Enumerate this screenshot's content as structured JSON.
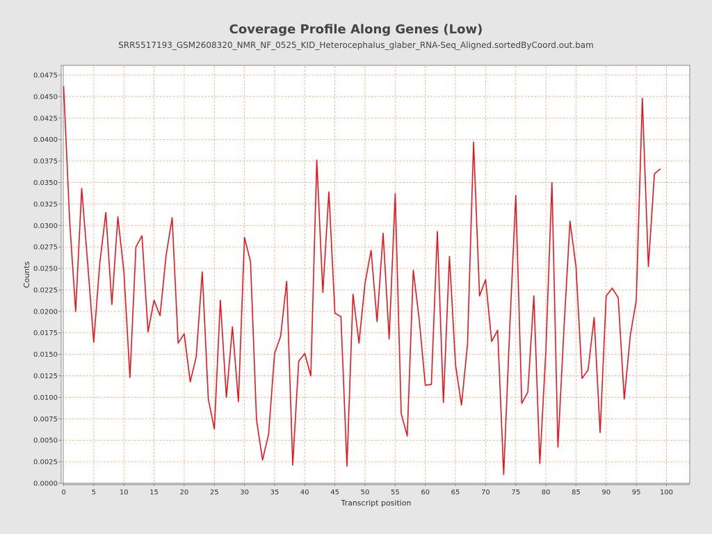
{
  "chart_data": {
    "type": "line",
    "title": "Coverage Profile Along Genes (Low)",
    "subtitle": "SRR5517193_GSM2608320_NMR_NF_0525_KID_Heterocephalus_glaber_RNA-Seq_Aligned.sortedByCoord.out.bam",
    "xlabel": "Transcript position",
    "ylabel": "Counts",
    "xlim": [
      0,
      100
    ],
    "ylim": [
      0,
      0.0475
    ],
    "grid": true,
    "legend": "none",
    "colors": {
      "line": "#e8131b",
      "grid": "#f2b995",
      "plot_background": "#ffffff",
      "page_background": "#e6e6e6"
    },
    "x_ticks": [
      "0",
      "5",
      "10",
      "15",
      "20",
      "25",
      "30",
      "35",
      "40",
      "45",
      "50",
      "55",
      "60",
      "65",
      "70",
      "75",
      "80",
      "85",
      "90",
      "95",
      "100"
    ],
    "x_tick_values": [
      0,
      5,
      10,
      15,
      20,
      25,
      30,
      35,
      40,
      45,
      50,
      55,
      60,
      65,
      70,
      75,
      80,
      85,
      90,
      95,
      100
    ],
    "y_ticks": [
      "0.0000",
      "0.0025",
      "0.0050",
      "0.0075",
      "0.0100",
      "0.0125",
      "0.0150",
      "0.0175",
      "0.0200",
      "0.0225",
      "0.0250",
      "0.0275",
      "0.0300",
      "0.0325",
      "0.0350",
      "0.0375",
      "0.0400",
      "0.0425",
      "0.0450",
      "0.0475"
    ],
    "y_tick_values": [
      0,
      0.0025,
      0.005,
      0.0075,
      0.01,
      0.0125,
      0.015,
      0.0175,
      0.02,
      0.0225,
      0.025,
      0.0275,
      0.03,
      0.0325,
      0.035,
      0.0375,
      0.04,
      0.0425,
      0.045,
      0.0475
    ],
    "series": [
      {
        "x": [
          0,
          1,
          2,
          3,
          4,
          5,
          6,
          7,
          8,
          9,
          10,
          11,
          12,
          13,
          14,
          15,
          16,
          17,
          18,
          19,
          20,
          21,
          22,
          23,
          24,
          25,
          26,
          27,
          28,
          29,
          30,
          31,
          32,
          33,
          34,
          35,
          36,
          37,
          38,
          39,
          40,
          41,
          42,
          43,
          44,
          45,
          46,
          47,
          48,
          49,
          50,
          51,
          52,
          53,
          54,
          55,
          56,
          57,
          58,
          59,
          60,
          61,
          62,
          63,
          64,
          65,
          66,
          67,
          68,
          69,
          70,
          71,
          72,
          73,
          74,
          75,
          76,
          77,
          78,
          79,
          80,
          81,
          82,
          83,
          84,
          85,
          86,
          87,
          88,
          89,
          90,
          91,
          92,
          93,
          94,
          95,
          96,
          97,
          98,
          99
        ],
        "y": [
          0.0462,
          0.0305,
          0.02,
          0.0343,
          0.0255,
          0.0164,
          0.0256,
          0.0315,
          0.0208,
          0.031,
          0.0246,
          0.0123,
          0.0275,
          0.0288,
          0.0176,
          0.0213,
          0.0195,
          0.0265,
          0.0309,
          0.0163,
          0.0174,
          0.0118,
          0.0147,
          0.0246,
          0.0098,
          0.0063,
          0.0213,
          0.01,
          0.0182,
          0.0095,
          0.0286,
          0.0258,
          0.0074,
          0.0027,
          0.0057,
          0.0151,
          0.0171,
          0.0235,
          0.0021,
          0.0142,
          0.0151,
          0.0125,
          0.0376,
          0.0222,
          0.0339,
          0.0198,
          0.0194,
          0.002,
          0.022,
          0.0163,
          0.0233,
          0.0271,
          0.0188,
          0.0291,
          0.0168,
          0.0337,
          0.0081,
          0.0055,
          0.0248,
          0.019,
          0.0114,
          0.0115,
          0.0293,
          0.0094,
          0.0264,
          0.0138,
          0.0091,
          0.0162,
          0.0397,
          0.0218,
          0.0237,
          0.0165,
          0.0178,
          0.001,
          0.018,
          0.0335,
          0.0093,
          0.0106,
          0.0218,
          0.0023,
          0.0155,
          0.035,
          0.0042,
          0.018,
          0.0305,
          0.0252,
          0.0122,
          0.0132,
          0.0193,
          0.0059,
          0.0218,
          0.0227,
          0.0216,
          0.0098,
          0.0172,
          0.0213,
          0.0448,
          0.0252,
          0.036,
          0.0366
        ]
      }
    ]
  }
}
